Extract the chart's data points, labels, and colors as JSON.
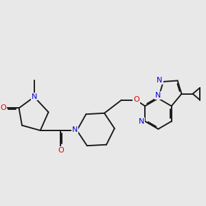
{
  "bg": "#e8e8e8",
  "bc": "#1a1a1a",
  "NC": "#0000dd",
  "OC": "#dd0000",
  "lw": 1.4,
  "dbl_off": 0.05,
  "dbl_shrink": 0.15,
  "figsize": [
    3.0,
    3.0
  ],
  "dpi": 100,
  "xlim": [
    0,
    10
  ],
  "ylim": [
    2,
    8
  ]
}
